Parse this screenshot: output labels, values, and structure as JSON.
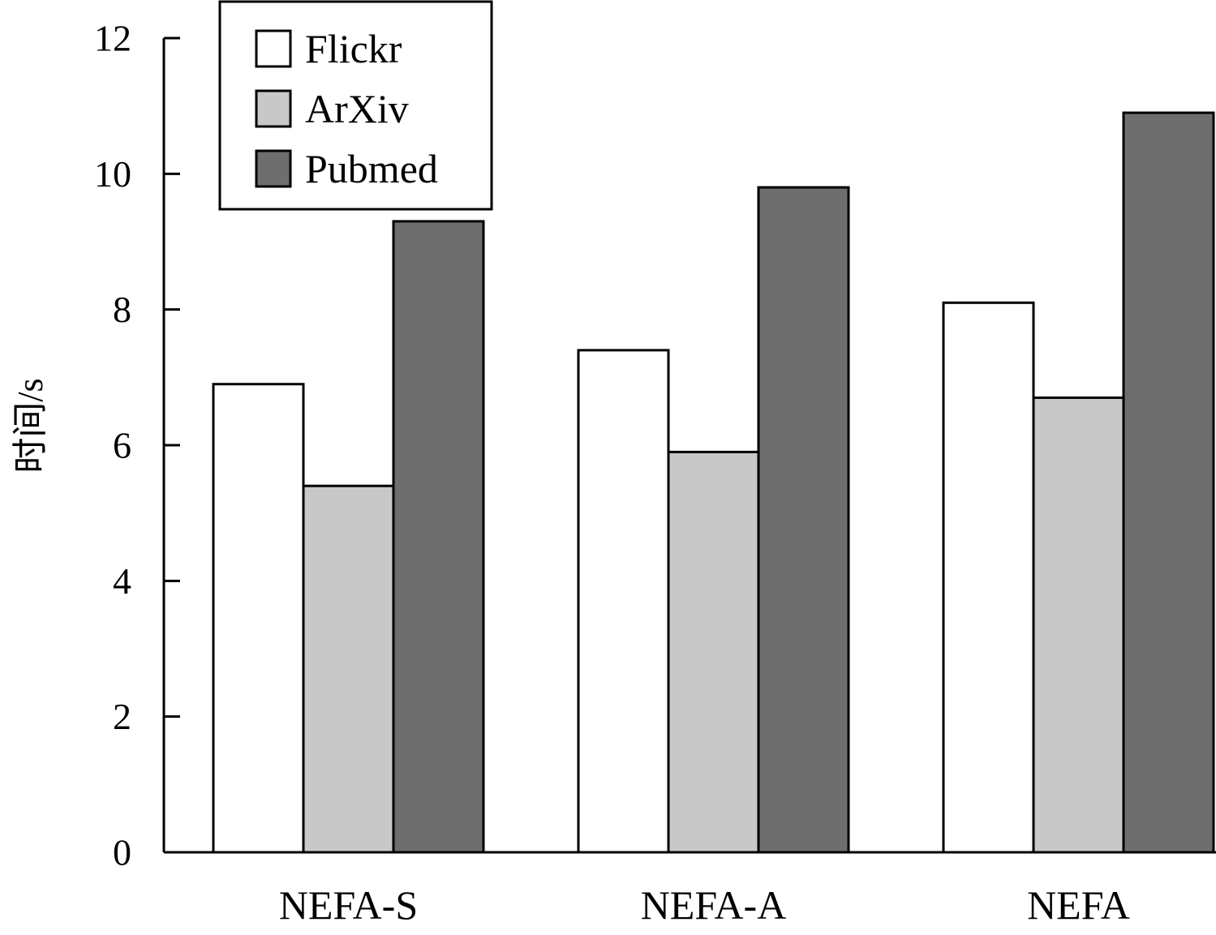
{
  "chart_data": {
    "type": "bar",
    "title": "",
    "xlabel": "",
    "ylabel": "时间/s",
    "categories": [
      "NEFA-S",
      "NEFA-A",
      "NEFA"
    ],
    "series": [
      {
        "name": "Flickr",
        "values": [
          6.9,
          7.4,
          8.1
        ],
        "color": "#ffffff"
      },
      {
        "name": "ArXiv",
        "values": [
          5.4,
          5.9,
          6.7
        ],
        "color": "#c8c8c8"
      },
      {
        "name": "Pubmed",
        "values": [
          9.3,
          9.8,
          10.9
        ],
        "color": "#6e6e6e"
      }
    ],
    "ylim": [
      0,
      12
    ],
    "yticks": [
      0,
      2,
      4,
      6,
      8,
      10,
      12
    ],
    "grid": false,
    "legend_position": "top-left"
  }
}
